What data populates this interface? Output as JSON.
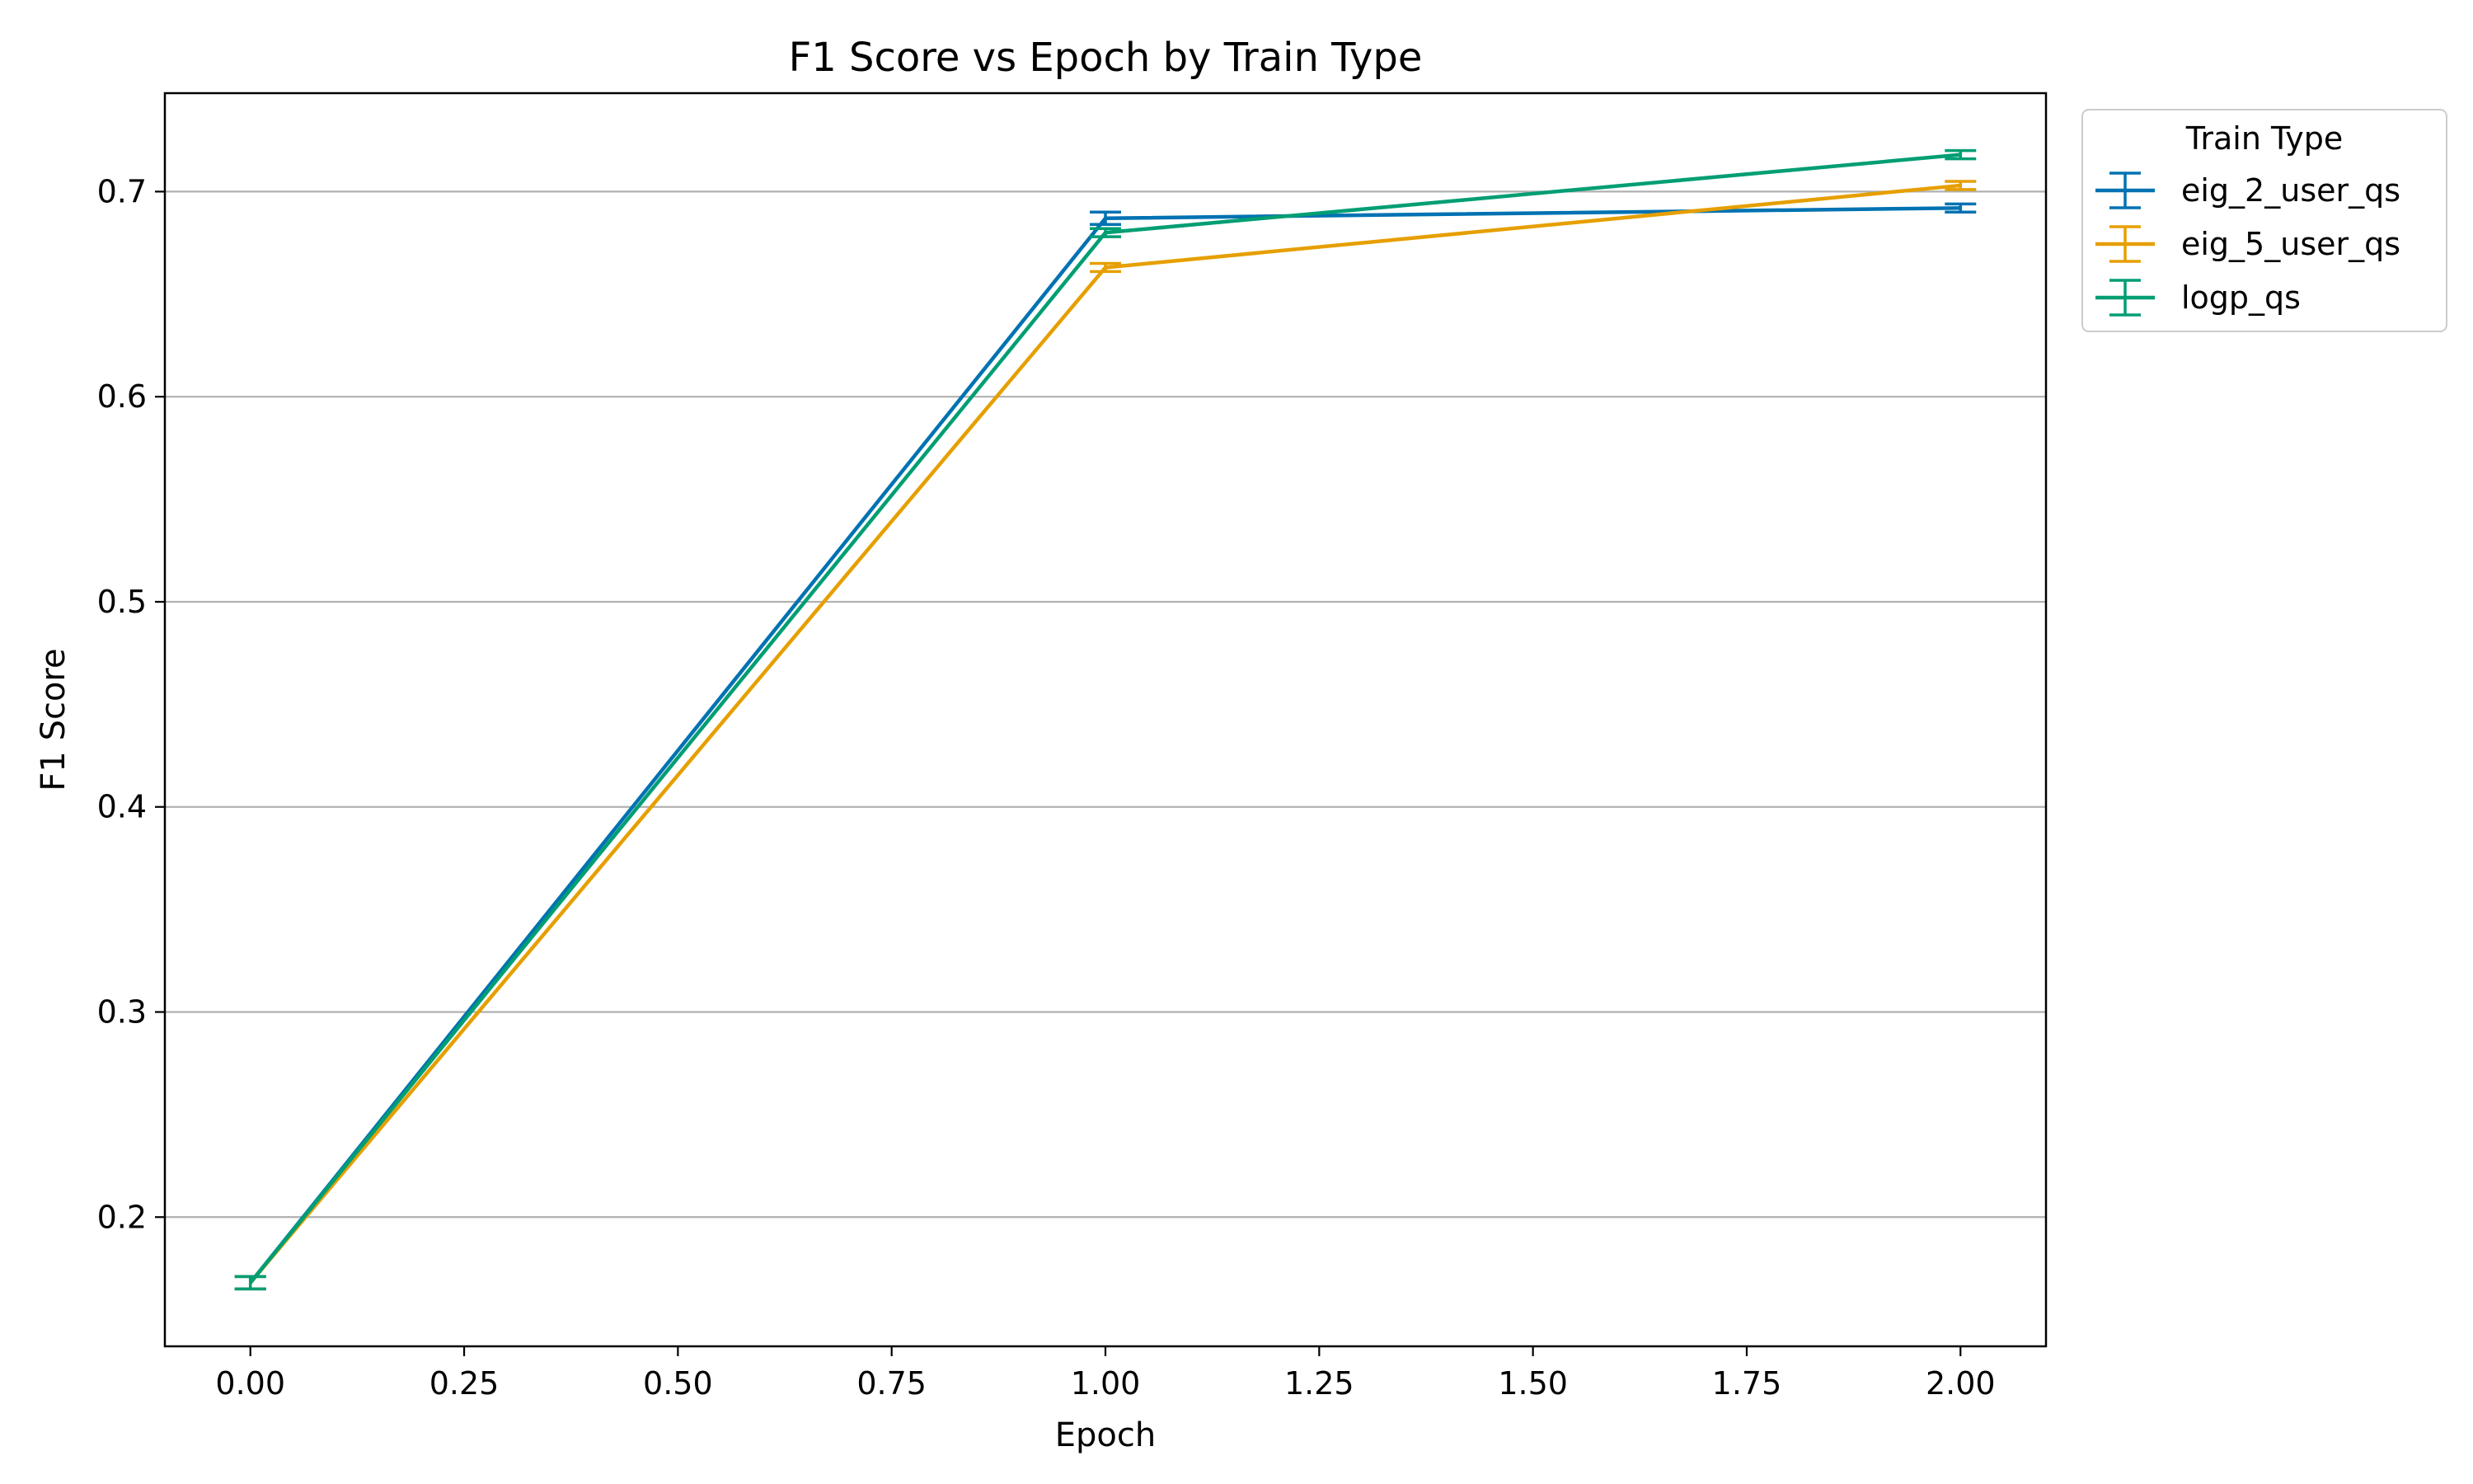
{
  "chart_data": {
    "type": "line",
    "title": "F1 Score vs Epoch by Train Type",
    "xlabel": "Epoch",
    "ylabel": "F1 Score",
    "x": [
      0,
      1,
      2
    ],
    "xlim": [
      -0.1,
      2.1
    ],
    "ylim": [
      0.137,
      0.748
    ],
    "xticks": [
      0.0,
      0.25,
      0.5,
      0.75,
      1.0,
      1.25,
      1.5,
      1.75,
      2.0
    ],
    "xtick_labels": [
      "0.00",
      "0.25",
      "0.50",
      "0.75",
      "1.00",
      "1.25",
      "1.50",
      "1.75",
      "2.00"
    ],
    "yticks": [
      0.2,
      0.3,
      0.4,
      0.5,
      0.6,
      0.7
    ],
    "ytick_labels": [
      "0.2",
      "0.3",
      "0.4",
      "0.5",
      "0.6",
      "0.7"
    ],
    "grid": "horizontal",
    "legend": {
      "title": "Train Type",
      "placement": "upper right, outside plot"
    },
    "series": [
      {
        "name": "eig_2_user_qs",
        "color": "#0072b2",
        "values": [
          0.168,
          0.687,
          0.692
        ],
        "errors": [
          0.003,
          0.003,
          0.002
        ]
      },
      {
        "name": "eig_5_user_qs",
        "color": "#e69f00",
        "values": [
          0.168,
          0.663,
          0.703
        ],
        "errors": [
          0.003,
          0.002,
          0.002
        ]
      },
      {
        "name": "logp_qs",
        "color": "#009e73",
        "values": [
          0.168,
          0.68,
          0.718
        ],
        "errors": [
          0.003,
          0.002,
          0.002
        ]
      }
    ]
  }
}
